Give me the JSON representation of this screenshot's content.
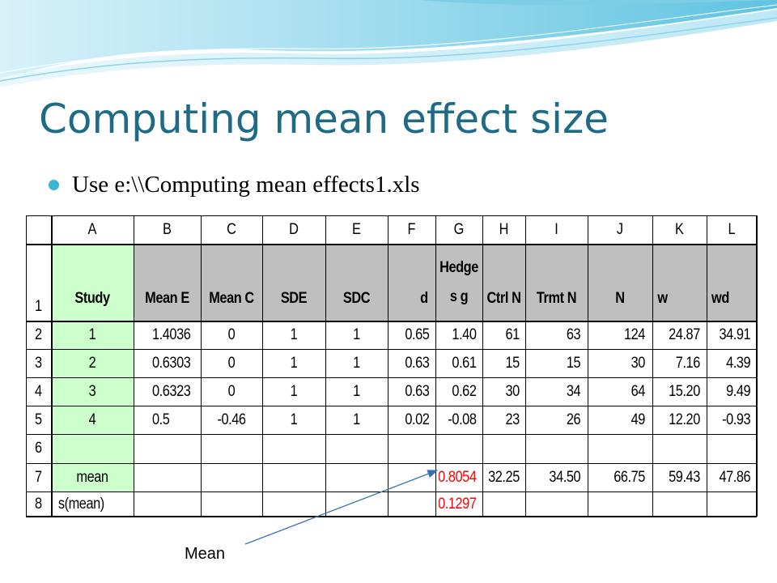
{
  "slide": {
    "title": "Computing mean effect size",
    "bullet": "Use e:\\\\Computing mean effects1.xls",
    "annotation": "Mean"
  },
  "spreadsheet": {
    "column_letters": [
      "A",
      "B",
      "C",
      "D",
      "E",
      "F",
      "G",
      "H",
      "I",
      "J",
      "K",
      "L"
    ],
    "row_numbers": [
      "1",
      "2",
      "3",
      "4",
      "5",
      "6",
      "7",
      "8"
    ],
    "headers": {
      "A": "Study",
      "B": "Mean E",
      "C": "Mean C",
      "D": "SDE",
      "E": "SDC",
      "F": "d",
      "G1": "Hedge",
      "G2": "s g",
      "H": "Ctrl N",
      "I": "Trmt N",
      "J": "N",
      "K": "w",
      "L": "wd"
    },
    "rows": [
      {
        "A": "1",
        "B": "1.4036",
        "C": "0",
        "D": "1",
        "E": "1",
        "F": "0.65",
        "G": "1.40",
        "H": "61",
        "I": "63",
        "J": "124",
        "K": "24.87",
        "L": "34.91"
      },
      {
        "A": "2",
        "B": "0.6303",
        "C": "0",
        "D": "1",
        "E": "1",
        "F": "0.63",
        "G": "0.61",
        "H": "15",
        "I": "15",
        "J": "30",
        "K": "7.16",
        "L": "4.39"
      },
      {
        "A": "3",
        "B": "0.6323",
        "C": "0",
        "D": "1",
        "E": "1",
        "F": "0.63",
        "G": "0.62",
        "H": "30",
        "I": "34",
        "J": "64",
        "K": "15.20",
        "L": "9.49"
      },
      {
        "A": "4",
        "B": "0.5",
        "C": "-0.46",
        "D": "1",
        "E": "1",
        "F": "0.02",
        "G": "-0.08",
        "H": "23",
        "I": "26",
        "J": "49",
        "K": "12.20",
        "L": "-0.93"
      },
      {
        "A": "",
        "B": "",
        "C": "",
        "D": "",
        "E": "",
        "F": "",
        "G": "",
        "H": "",
        "I": "",
        "J": "",
        "K": "",
        "L": ""
      },
      {
        "A": "mean",
        "B": "",
        "C": "",
        "D": "",
        "E": "",
        "F": "",
        "G": "0.8054",
        "H": "32.25",
        "I": "34.50",
        "J": "66.75",
        "K": "59.43",
        "L": "47.86"
      },
      {
        "A": "s(mean)",
        "B": "",
        "C": "",
        "D": "",
        "E": "",
        "F": "",
        "G": "0.1297",
        "H": "",
        "I": "",
        "J": "",
        "K": "",
        "L": ""
      }
    ]
  },
  "colors": {
    "title": "#1f6b86",
    "bullet": "#3cb4d3",
    "header_fill": "#bfbfbf",
    "study_fill": "#ccffcc",
    "highlight_text": "#ff0000",
    "arrow": "#3a6fb5"
  }
}
